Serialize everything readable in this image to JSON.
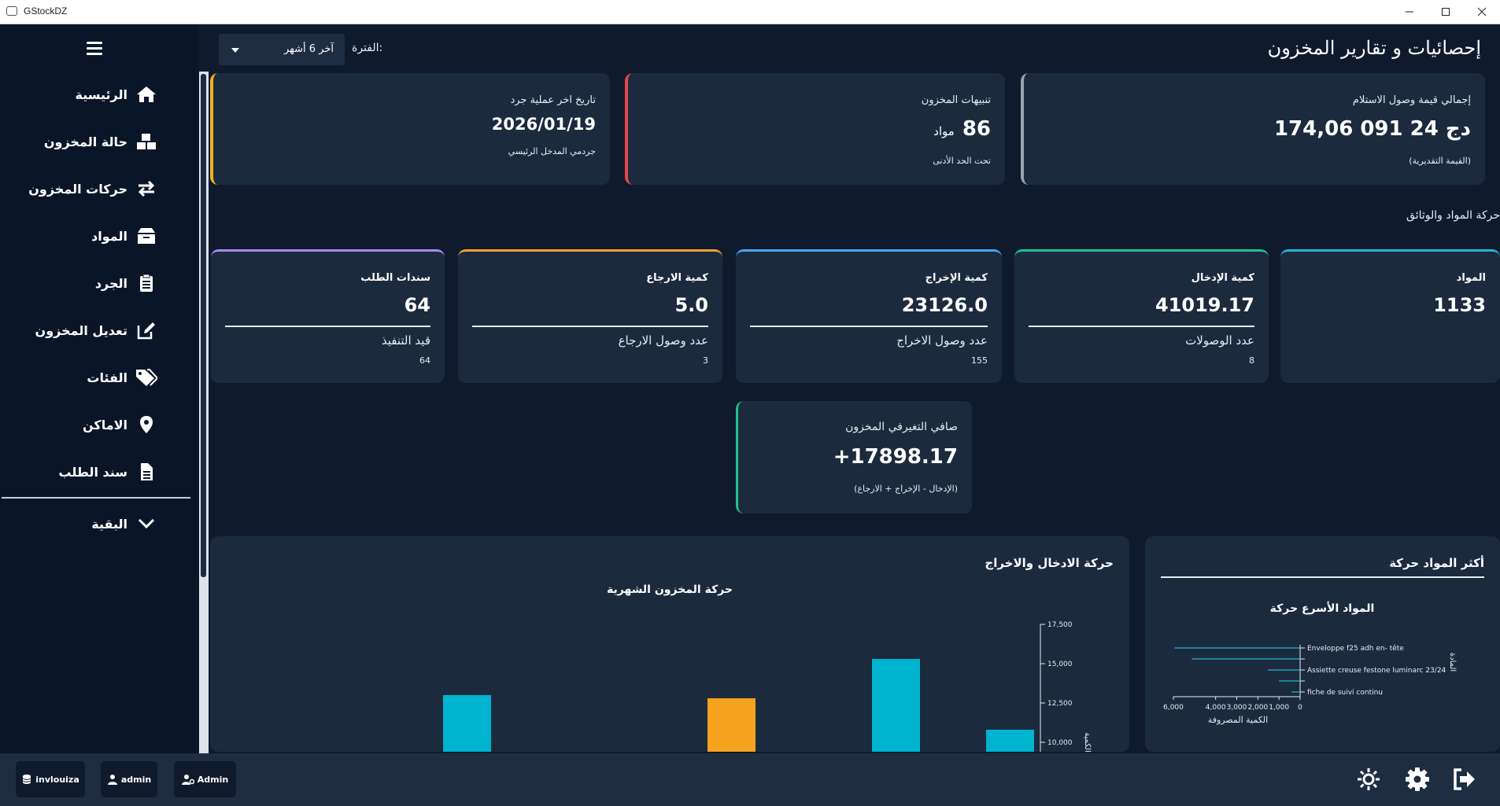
{
  "window": {
    "title": "GStockDZ"
  },
  "sidebar": {
    "items": [
      {
        "label": "الرئيسية",
        "icon": "home-icon"
      },
      {
        "label": "حالة المخزون",
        "icon": "boxes-icon"
      },
      {
        "label": "حركات المخزون",
        "icon": "exchange-arrows-icon"
      },
      {
        "label": "المواد",
        "icon": "box-icon"
      },
      {
        "label": "الجرد",
        "icon": "clipboard-icon"
      },
      {
        "label": "تعديل المخزون",
        "icon": "edit-icon"
      },
      {
        "label": "الفئات",
        "icon": "tags-icon"
      },
      {
        "label": "الاماكن",
        "icon": "location-pin-icon"
      },
      {
        "label": "سند الطلب",
        "icon": "document-icon"
      }
    ],
    "more_label": "البقية"
  },
  "header": {
    "title": "إحصائيات و تقارير المخزون",
    "period_label": "الفترة:",
    "period_value": "آخر 6 أشهر"
  },
  "summary": {
    "receipts": {
      "title": "إجمالي قيمة وصول الاستلام",
      "value": "174,06 091 24 دج",
      "sub": "(القيمة التقديرية)"
    },
    "alerts": {
      "title": "تنبيهات المخزون",
      "value": "86",
      "unit": "مواد",
      "sub": "تحت الحد الأدنى"
    },
    "inventory": {
      "title": "تاريخ اخر عملية جرد",
      "value": "2026/01/19",
      "sub": "جردمي المدخل الرئيسي"
    }
  },
  "movement_section_label": "حركة المواد والوثائق",
  "metrics": [
    {
      "title": "المواد",
      "value": "1133",
      "color": "#22b6d6"
    },
    {
      "title": "كمية الإدخال",
      "value": "41019.17",
      "sub": "عدد الوصولات",
      "count": "8",
      "color": "#1fc28a"
    },
    {
      "title": "كمية الإخراج",
      "value": "23126.0",
      "sub": "عدد وصول الاخراج",
      "count": "155",
      "color": "#4da3f0"
    },
    {
      "title": "كمية الارجاع",
      "value": "5.0",
      "sub": "عدد وصول الارجاع",
      "count": "3",
      "color": "#f59f36"
    },
    {
      "title": "سندات الطلب",
      "value": "64",
      "sub": "قيد التنفيذ",
      "count": "64",
      "color": "#a98af0"
    }
  ],
  "net": {
    "title": "صافي التغيرفي المخزون",
    "value": "+17898.17",
    "sub": "(الإدخال - الإخراج + الارجاع)"
  },
  "top_items_panel": {
    "title": "أكثر المواد حركة",
    "chart_data": {
      "type": "bar",
      "orientation": "horizontal",
      "title": "المواد الأسرع حركة",
      "xlabel": "الكمية المصروفة",
      "ylabel": "المادة",
      "categories": [
        "Enveloppe  f25 adh en- tête",
        "",
        "Assiette creuse festone luminarc 23/24",
        "",
        "fiche de suivi continu"
      ],
      "values": [
        5950,
        5130,
        1520,
        1000,
        400
      ],
      "x_ticks": [
        "6,000",
        "4,000",
        "3,000",
        "2,000",
        "1,000",
        "0"
      ],
      "xlim": [
        0,
        6000
      ],
      "color": "#22b6d6"
    }
  },
  "flow_panel": {
    "title": "حركة الادخال والاخراج",
    "chart_data": {
      "type": "bar",
      "title": "حركة المخزون الشهرية",
      "ylabel": "الكمية",
      "ylim": [
        7500,
        17500
      ],
      "y_ticks": [
        "17,500",
        "15,000",
        "12,500",
        "10,000"
      ],
      "bars": [
        {
          "value": 13000,
          "color": "#00b4d0"
        },
        {
          "value": 12800,
          "color": "#f5a31f"
        },
        {
          "value": 15300,
          "color": "#00b4d0"
        },
        {
          "value": 10800,
          "color": "#00b4d0"
        }
      ]
    }
  },
  "footer": {
    "db_label": "invlouiza",
    "user_label": "admin",
    "role_label": "Admin"
  }
}
